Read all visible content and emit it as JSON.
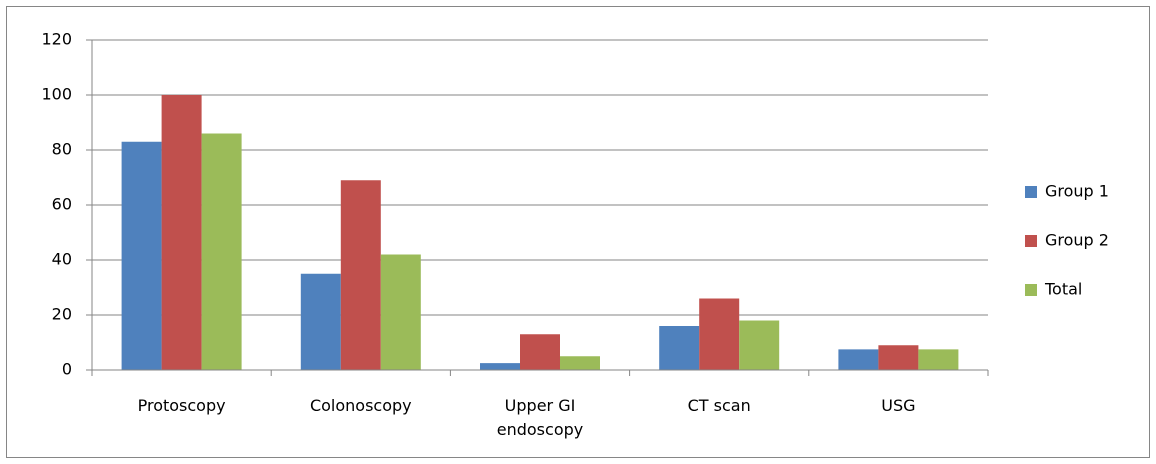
{
  "chart_data": {
    "type": "bar",
    "categories": [
      "Protoscopy",
      "Colonoscopy",
      "Upper GI endoscopy",
      "CT scan",
      "USG"
    ],
    "series": [
      {
        "name": "Group 1",
        "color": "#4f81bd",
        "values": [
          83,
          35,
          2.5,
          16,
          7.5
        ]
      },
      {
        "name": "Group 2",
        "color": "#c0504d",
        "values": [
          100,
          69,
          13,
          26,
          9
        ]
      },
      {
        "name": "Total",
        "color": "#9bbb59",
        "values": [
          86,
          42,
          5,
          18,
          7.5
        ]
      }
    ],
    "ylim": [
      0,
      120
    ],
    "yticks": [
      0,
      20,
      40,
      60,
      80,
      100,
      120
    ],
    "grid": true,
    "legend": "right"
  }
}
